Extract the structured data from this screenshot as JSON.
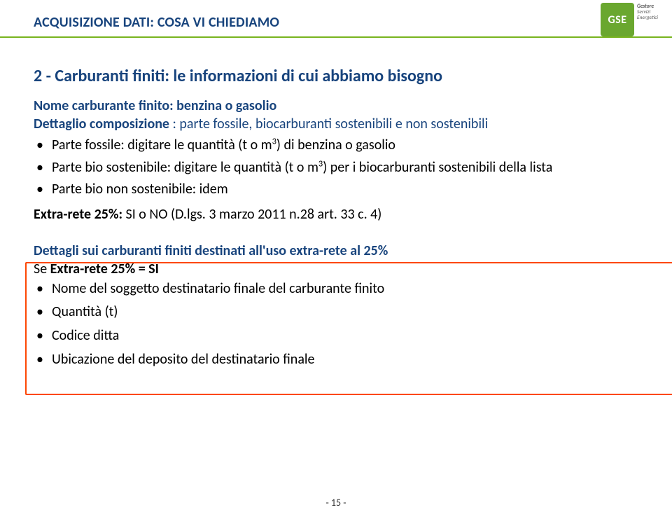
{
  "colors": {
    "section_title": "#18447d",
    "green_line": "#78b41e",
    "logo_bg": "#6aa72f",
    "h2": "#18447d",
    "subhead": "#18447d",
    "details_head": "#18447d",
    "frame_border": "#fd4703",
    "logo_side": "#595959"
  },
  "header": {
    "section_title": "ACQUISIZIONE DATI: COSA VI CHIEDIAMO",
    "logo_text": "GSE",
    "logo_side1": "Gestore",
    "logo_side2": "Servizi",
    "logo_side3": "Energetici"
  },
  "main": {
    "h2": "2 - Carburanti finiti: le informazioni di cui abbiamo bisogno",
    "subhead": "Nome carburante finito: benzina o gasolio",
    "subhead2_a": "Dettaglio composizione",
    "subhead2_b": " : parte fossile, biocarburanti sostenibili e non sostenibili",
    "bullet1_a": "Parte fossile: digitare le quantità (t o m",
    "bullet1_sup": "3",
    "bullet1_b": ") di benzina o gasolio",
    "bullet2_a": "Parte bio sostenibile: digitare le quantità (t o m",
    "bullet2_sup": "3",
    "bullet2_b": ") per i biocarburanti sostenibili della lista",
    "bullet3": "Parte bio non sostenibile: idem",
    "extra_a": "Extra-rete 25%:",
    "extra_b": " SI o NO (D.lgs. 3 marzo 2011 n.28 art. 33 c. 4)"
  },
  "box": {
    "details_head": "Dettagli sui carburanti finiti destinati all'uso extra-rete al 25%",
    "line1_a": "Se ",
    "line1_b": "Extra-rete 25% = SI",
    "b1": "Nome del soggetto destinatario finale del carburante finito",
    "b2": "Quantità (t)",
    "b3": "Codice ditta",
    "b4": "Ubicazione del deposito del destinatario finale"
  },
  "footer": {
    "page": "- 15 -"
  }
}
